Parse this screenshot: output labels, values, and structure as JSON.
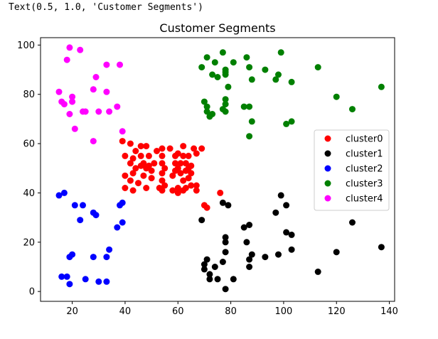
{
  "cell_output": "Text(0.5, 1.0, 'Customer Segments')",
  "chart_data": {
    "type": "scatter",
    "title": "Customer Segments",
    "xlabel": "",
    "ylabel": "",
    "xlim": [
      8,
      142
    ],
    "ylim": [
      -4,
      103
    ],
    "xticks": [
      20,
      40,
      60,
      80,
      100,
      120,
      140
    ],
    "yticks": [
      0,
      20,
      40,
      60,
      80,
      100
    ],
    "legend_position": "center right",
    "grid": false,
    "series": [
      {
        "name": "cluster0",
        "color": "#ff0000",
        "points": [
          [
            39,
            61
          ],
          [
            40,
            55
          ],
          [
            40,
            47
          ],
          [
            40,
            42
          ],
          [
            42,
            60
          ],
          [
            42,
            52
          ],
          [
            42,
            45
          ],
          [
            43,
            54
          ],
          [
            43,
            48
          ],
          [
            43,
            41
          ],
          [
            44,
            57
          ],
          [
            44,
            50
          ],
          [
            45,
            44
          ],
          [
            46,
            55
          ],
          [
            46,
            51
          ],
          [
            46,
            59
          ],
          [
            47,
            52
          ],
          [
            47,
            47
          ],
          [
            48,
            59
          ],
          [
            48,
            50
          ],
          [
            48,
            42
          ],
          [
            49,
            55
          ],
          [
            49,
            51
          ],
          [
            50,
            46
          ],
          [
            50,
            49
          ],
          [
            51,
            52
          ],
          [
            52,
            57
          ],
          [
            53,
            42
          ],
          [
            54,
            58
          ],
          [
            54,
            55
          ],
          [
            54,
            52
          ],
          [
            54,
            48
          ],
          [
            54,
            45
          ],
          [
            54,
            41
          ],
          [
            55,
            50
          ],
          [
            55,
            43
          ],
          [
            57,
            58
          ],
          [
            58,
            47
          ],
          [
            58,
            41
          ],
          [
            59,
            55
          ],
          [
            59,
            52
          ],
          [
            59,
            49
          ],
          [
            60,
            56
          ],
          [
            60,
            42
          ],
          [
            60,
            40
          ],
          [
            60,
            50
          ],
          [
            61,
            52
          ],
          [
            61,
            48
          ],
          [
            62,
            55
          ],
          [
            62,
            59
          ],
          [
            62,
            45
          ],
          [
            62,
            41
          ],
          [
            63,
            52
          ],
          [
            63,
            49
          ],
          [
            63,
            42
          ],
          [
            64,
            55
          ],
          [
            64,
            46
          ],
          [
            64,
            50
          ],
          [
            65,
            48
          ],
          [
            65,
            43
          ],
          [
            65,
            51
          ],
          [
            66,
            58
          ],
          [
            67,
            56
          ],
          [
            67,
            43
          ],
          [
            67,
            41
          ],
          [
            69,
            58
          ],
          [
            70,
            35
          ],
          [
            71,
            34
          ],
          [
            76,
            40
          ]
        ]
      },
      {
        "name": "cluster1",
        "color": "#000000",
        "points": [
          [
            69,
            29
          ],
          [
            70,
            11
          ],
          [
            70,
            9
          ],
          [
            71,
            13
          ],
          [
            72,
            7
          ],
          [
            72,
            5
          ],
          [
            74,
            10
          ],
          [
            75,
            5
          ],
          [
            77,
            12
          ],
          [
            77,
            36
          ],
          [
            78,
            22
          ],
          [
            78,
            20
          ],
          [
            78,
            16
          ],
          [
            78,
            1
          ],
          [
            79,
            35
          ],
          [
            81,
            5
          ],
          [
            85,
            26
          ],
          [
            86,
            20
          ],
          [
            87,
            27
          ],
          [
            87,
            13
          ],
          [
            87,
            10
          ],
          [
            88,
            15
          ],
          [
            93,
            14
          ],
          [
            97,
            32
          ],
          [
            98,
            15
          ],
          [
            99,
            39
          ],
          [
            101,
            24
          ],
          [
            101,
            35
          ],
          [
            103,
            17
          ],
          [
            103,
            23
          ],
          [
            113,
            8
          ],
          [
            120,
            16
          ],
          [
            126,
            28
          ],
          [
            137,
            18
          ]
        ]
      },
      {
        "name": "cluster2",
        "color": "#0000ff",
        "points": [
          [
            15,
            39
          ],
          [
            16,
            6
          ],
          [
            17,
            40
          ],
          [
            18,
            6
          ],
          [
            19,
            3
          ],
          [
            19,
            14
          ],
          [
            20,
            15
          ],
          [
            21,
            35
          ],
          [
            23,
            29
          ],
          [
            24,
            35
          ],
          [
            25,
            5
          ],
          [
            28,
            32
          ],
          [
            28,
            14
          ],
          [
            29,
            31
          ],
          [
            30,
            4
          ],
          [
            33,
            14
          ],
          [
            33,
            4
          ],
          [
            34,
            17
          ],
          [
            37,
            26
          ],
          [
            38,
            35
          ],
          [
            39,
            36
          ],
          [
            39,
            28
          ]
        ]
      },
      {
        "name": "cluster3",
        "color": "#008000",
        "points": [
          [
            69,
            91
          ],
          [
            70,
            77
          ],
          [
            71,
            95
          ],
          [
            71,
            75
          ],
          [
            71,
            73
          ],
          [
            72,
            71
          ],
          [
            73,
            88
          ],
          [
            73,
            72
          ],
          [
            74,
            93
          ],
          [
            75,
            87
          ],
          [
            77,
            97
          ],
          [
            77,
            74
          ],
          [
            78,
            88
          ],
          [
            78,
            90
          ],
          [
            78,
            89
          ],
          [
            78,
            73
          ],
          [
            78,
            78
          ],
          [
            78,
            76
          ],
          [
            79,
            83
          ],
          [
            81,
            93
          ],
          [
            85,
            75
          ],
          [
            86,
            95
          ],
          [
            87,
            91
          ],
          [
            87,
            75
          ],
          [
            87,
            63
          ],
          [
            88,
            86
          ],
          [
            88,
            69
          ],
          [
            93,
            90
          ],
          [
            97,
            86
          ],
          [
            98,
            88
          ],
          [
            99,
            97
          ],
          [
            101,
            68
          ],
          [
            103,
            69
          ],
          [
            103,
            85
          ],
          [
            113,
            91
          ],
          [
            120,
            79
          ],
          [
            126,
            74
          ],
          [
            137,
            83
          ]
        ]
      },
      {
        "name": "cluster4",
        "color": "#ff00ff",
        "points": [
          [
            15,
            81
          ],
          [
            16,
            77
          ],
          [
            17,
            76
          ],
          [
            18,
            94
          ],
          [
            19,
            99
          ],
          [
            19,
            72
          ],
          [
            20,
            77
          ],
          [
            20,
            79
          ],
          [
            21,
            66
          ],
          [
            23,
            98
          ],
          [
            24,
            73
          ],
          [
            25,
            73
          ],
          [
            28,
            82
          ],
          [
            28,
            61
          ],
          [
            29,
            87
          ],
          [
            30,
            73
          ],
          [
            33,
            92
          ],
          [
            33,
            81
          ],
          [
            34,
            73
          ],
          [
            37,
            75
          ],
          [
            38,
            92
          ],
          [
            39,
            65
          ]
        ]
      }
    ]
  }
}
